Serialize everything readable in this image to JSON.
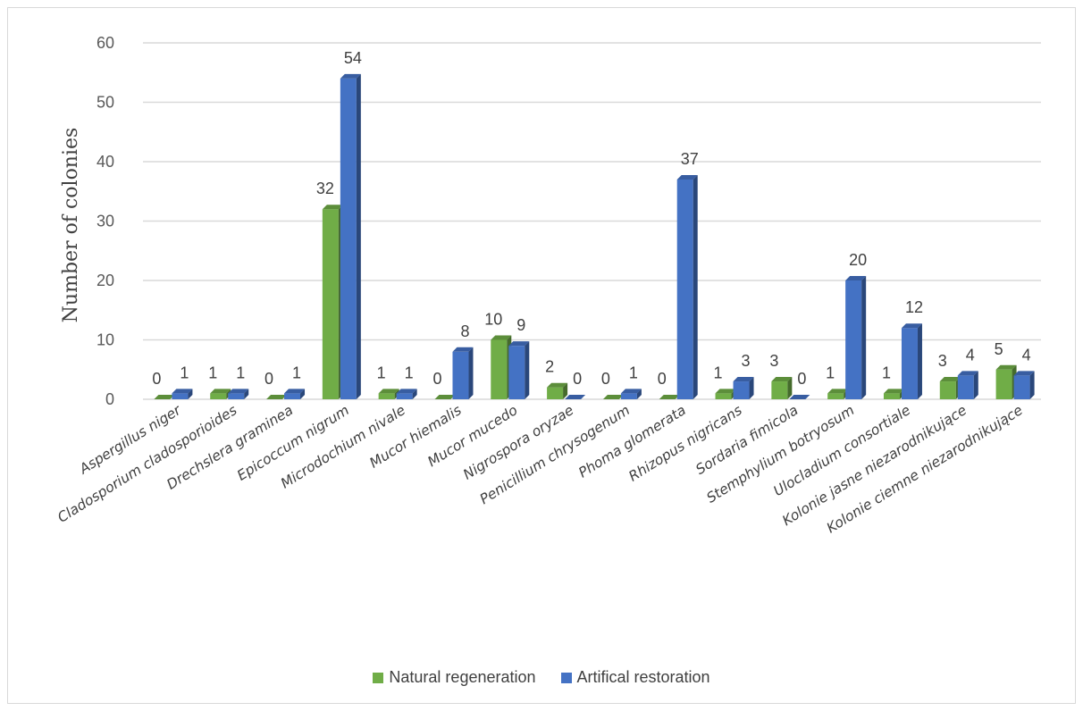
{
  "chart_data": {
    "type": "bar",
    "style": "3d-clustered-column",
    "title": "",
    "xlabel": "",
    "ylabel": "Number of colonies",
    "ylim": [
      0,
      60
    ],
    "yticks": [
      0,
      10,
      20,
      30,
      40,
      50,
      60
    ],
    "grid": true,
    "legend_position": "bottom",
    "categories": [
      "Aspergillus niger",
      "Cladosporium cladosporioides",
      "Drechslera graminea",
      "Epicoccum nigrum",
      "Microdochium nivale",
      "Mucor hiemalis",
      "Mucor mucedo",
      "Nigrospora oryzae",
      "Penicillium chrysogenum",
      "Phoma glomerata",
      "Rhizopus nigricans",
      "Sordaria fimicola",
      "Stemphylium botryosum",
      "Ulocladium consortiale",
      "Kolonie jasne niezarodnikujące",
      "Kolonie ciemne niezarodnikujące"
    ],
    "series": [
      {
        "name": "Natural regeneration",
        "color": "#70AD47",
        "values": [
          0,
          1,
          0,
          32,
          1,
          0,
          10,
          2,
          0,
          0,
          1,
          3,
          1,
          1,
          3,
          5
        ]
      },
      {
        "name": "Artifical restoration",
        "color": "#4472C4",
        "values": [
          1,
          1,
          1,
          54,
          1,
          8,
          9,
          0,
          1,
          37,
          3,
          0,
          20,
          12,
          4,
          4
        ]
      }
    ]
  }
}
